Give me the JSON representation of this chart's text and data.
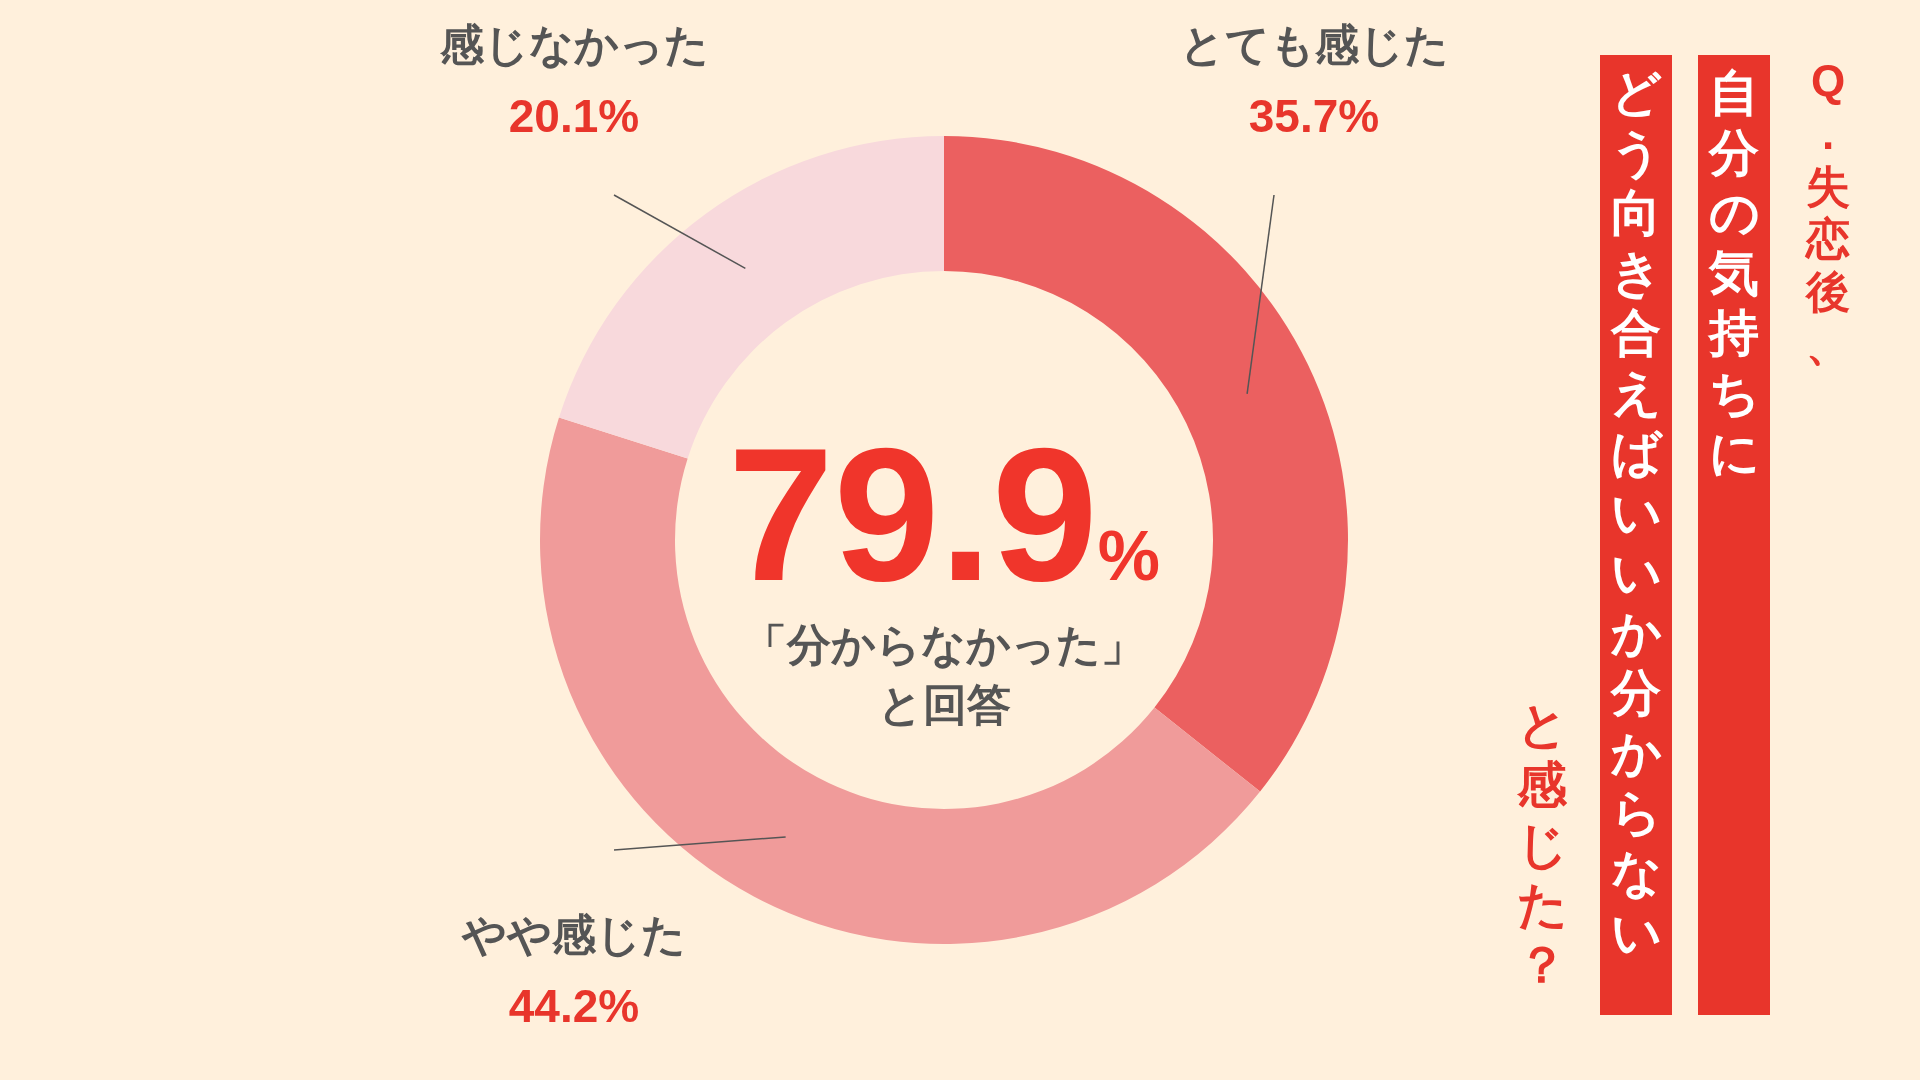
{
  "chart_data": {
    "type": "donut",
    "title": "Q.失恋後、",
    "subtitle": "自分の気持ちに",
    "categories": [
      "とても感じた",
      "やや感じた",
      "感じなかった"
    ],
    "values": [
      35.7,
      44.2,
      20.1
    ],
    "colors": [
      "#eb6060",
      "#f09b9a",
      "#f8d9dc"
    ],
    "value_labels": [
      "35.7%",
      "44.2%",
      "20.1%"
    ],
    "annotations": [
      "79.9%",
      "「分からなかった」と回答",
      "どう向き合えばいいか分からない",
      "と感じた？"
    ]
  }
}
